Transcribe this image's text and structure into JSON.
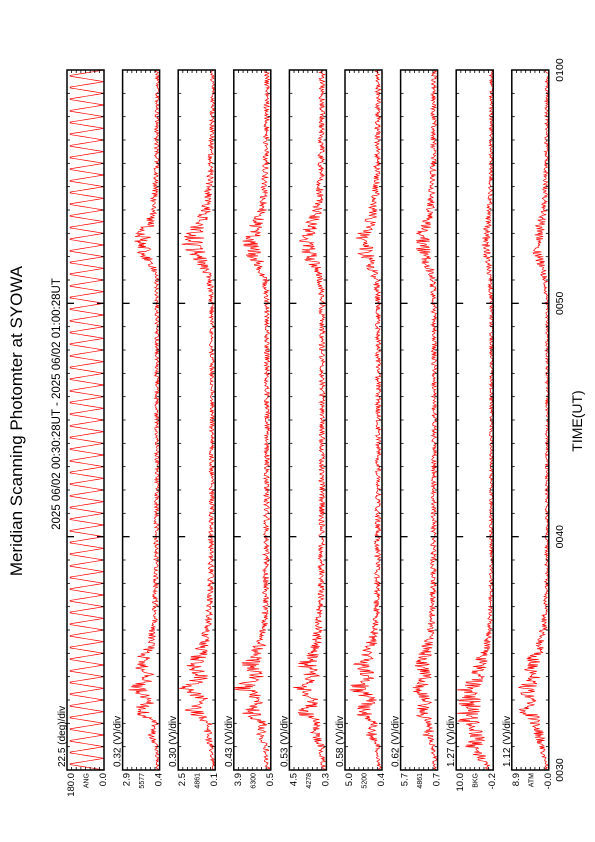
{
  "chart_data": {
    "type": "line",
    "title": "Meridian Scanning Photomter at SYOWA",
    "time_range_label": "2025 06/02 00:30:28UT - 2025 06/02 01:00:28UT",
    "xlabel": "TIME(UT)",
    "x_tick_labels": [
      "0030",
      "0040",
      "0050",
      "0100"
    ],
    "x_range_minutes": [
      30,
      60
    ],
    "series_color": "#ff0000",
    "panels": [
      {
        "name": "ANG",
        "scale_label": "22.5 (deg)/div",
        "y_top_label": "180.0",
        "y_bottom_label": "0.0",
        "y_range": [
          0,
          180
        ],
        "kind": "scan-angle",
        "scan_period_minutes": 0.5
      },
      {
        "name": "5577",
        "scale_label": "0.32 (V)/div",
        "y_top_label": "2.9",
        "y_bottom_label": "0.4",
        "y_range": [
          0.4,
          2.9
        ],
        "kind": "photometer",
        "points": [
          [
            30.0,
            0.52
          ],
          [
            31.0,
            0.6
          ],
          [
            31.5,
            0.95
          ],
          [
            32.0,
            0.7
          ],
          [
            32.5,
            1.8
          ],
          [
            33.0,
            1.0
          ],
          [
            33.5,
            2.0
          ],
          [
            34.0,
            1.1
          ],
          [
            34.5,
            1.7
          ],
          [
            35.0,
            1.3
          ],
          [
            35.5,
            0.95
          ],
          [
            36.0,
            0.85
          ],
          [
            36.5,
            0.75
          ],
          [
            37.0,
            0.7
          ],
          [
            38.0,
            0.66
          ],
          [
            40.0,
            0.62
          ],
          [
            42.0,
            0.6
          ],
          [
            44.0,
            0.58
          ],
          [
            46.0,
            0.6
          ],
          [
            48.0,
            0.58
          ],
          [
            50.0,
            0.57
          ],
          [
            51.0,
            0.6
          ],
          [
            51.5,
            0.8
          ],
          [
            52.0,
            1.3
          ],
          [
            52.5,
            1.6
          ],
          [
            53.0,
            1.5
          ],
          [
            53.5,
            1.1
          ],
          [
            54.0,
            0.85
          ],
          [
            55.0,
            0.7
          ],
          [
            56.0,
            0.63
          ],
          [
            58.0,
            0.58
          ],
          [
            60.0,
            0.55
          ]
        ]
      },
      {
        "name": "4861",
        "scale_label": "0.30 (V)/div",
        "y_top_label": "2.5",
        "y_bottom_label": "0.1",
        "y_range": [
          0.1,
          2.5
        ],
        "kind": "photometer",
        "points": [
          [
            30.0,
            0.2
          ],
          [
            31.0,
            0.35
          ],
          [
            31.5,
            0.6
          ],
          [
            32.0,
            0.5
          ],
          [
            32.5,
            1.6
          ],
          [
            33.0,
            0.8
          ],
          [
            33.5,
            1.9
          ],
          [
            34.0,
            1.0
          ],
          [
            34.5,
            1.5
          ],
          [
            35.0,
            1.1
          ],
          [
            35.5,
            0.8
          ],
          [
            36.0,
            0.6
          ],
          [
            37.0,
            0.45
          ],
          [
            38.0,
            0.4
          ],
          [
            40.0,
            0.36
          ],
          [
            42.0,
            0.34
          ],
          [
            44.0,
            0.32
          ],
          [
            46.0,
            0.3
          ],
          [
            48.0,
            0.32
          ],
          [
            50.0,
            0.33
          ],
          [
            51.0,
            0.45
          ],
          [
            51.5,
            0.8
          ],
          [
            52.0,
            1.2
          ],
          [
            52.5,
            1.6
          ],
          [
            53.0,
            1.4
          ],
          [
            53.5,
            1.0
          ],
          [
            54.0,
            0.7
          ],
          [
            55.0,
            0.5
          ],
          [
            56.0,
            0.38
          ],
          [
            58.0,
            0.3
          ],
          [
            60.0,
            0.26
          ]
        ]
      },
      {
        "name": "6300",
        "scale_label": "0.43 (V)/div",
        "y_top_label": "3.9",
        "y_bottom_label": "0.5",
        "y_range": [
          0.5,
          3.9
        ],
        "kind": "photometer",
        "points": [
          [
            30.0,
            0.8
          ],
          [
            31.0,
            1.0
          ],
          [
            31.5,
            1.4
          ],
          [
            32.0,
            1.2
          ],
          [
            32.5,
            2.6
          ],
          [
            33.0,
            1.6
          ],
          [
            33.5,
            2.9
          ],
          [
            34.0,
            1.8
          ],
          [
            34.5,
            2.4
          ],
          [
            35.0,
            1.9
          ],
          [
            35.5,
            1.4
          ],
          [
            36.0,
            1.2
          ],
          [
            37.0,
            1.0
          ],
          [
            38.0,
            0.95
          ],
          [
            40.0,
            0.9
          ],
          [
            42.0,
            0.88
          ],
          [
            44.0,
            0.85
          ],
          [
            46.0,
            0.86
          ],
          [
            48.0,
            0.84
          ],
          [
            50.0,
            0.85
          ],
          [
            51.0,
            1.0
          ],
          [
            51.5,
            1.4
          ],
          [
            52.0,
            2.0
          ],
          [
            52.5,
            2.3
          ],
          [
            53.0,
            2.2
          ],
          [
            53.5,
            1.7
          ],
          [
            54.0,
            1.3
          ],
          [
            55.0,
            1.05
          ],
          [
            56.0,
            0.95
          ],
          [
            58.0,
            0.88
          ],
          [
            60.0,
            0.85
          ]
        ]
      },
      {
        "name": "4278",
        "scale_label": "0.53 (V)/div",
        "y_top_label": "4.5",
        "y_bottom_label": "0.3",
        "y_range": [
          0.3,
          4.5
        ],
        "kind": "photometer",
        "points": [
          [
            30.0,
            0.6
          ],
          [
            31.0,
            0.9
          ],
          [
            31.5,
            1.5
          ],
          [
            32.0,
            1.2
          ],
          [
            32.5,
            2.8
          ],
          [
            33.0,
            1.6
          ],
          [
            33.5,
            3.1
          ],
          [
            34.0,
            1.9
          ],
          [
            34.5,
            2.6
          ],
          [
            35.0,
            2.0
          ],
          [
            35.5,
            1.5
          ],
          [
            36.0,
            1.2
          ],
          [
            37.0,
            1.0
          ],
          [
            38.0,
            0.9
          ],
          [
            40.0,
            0.85
          ],
          [
            42.0,
            0.82
          ],
          [
            44.0,
            0.8
          ],
          [
            46.0,
            0.78
          ],
          [
            48.0,
            0.8
          ],
          [
            50.0,
            0.8
          ],
          [
            51.0,
            1.0
          ],
          [
            51.5,
            1.5
          ],
          [
            52.0,
            2.1
          ],
          [
            52.5,
            2.4
          ],
          [
            53.0,
            2.3
          ],
          [
            53.5,
            1.8
          ],
          [
            54.0,
            1.3
          ],
          [
            55.0,
            1.0
          ],
          [
            56.0,
            0.9
          ],
          [
            58.0,
            0.82
          ],
          [
            60.0,
            0.78
          ]
        ]
      },
      {
        "name": "5200",
        "scale_label": "0.58 (V)/div",
        "y_top_label": "5.0",
        "y_bottom_label": "0.4",
        "y_range": [
          0.4,
          5.0
        ],
        "kind": "photometer",
        "points": [
          [
            30.0,
            0.7
          ],
          [
            31.0,
            1.0
          ],
          [
            31.5,
            1.7
          ],
          [
            32.0,
            1.3
          ],
          [
            32.5,
            3.0
          ],
          [
            33.0,
            1.8
          ],
          [
            33.5,
            3.4
          ],
          [
            34.0,
            2.1
          ],
          [
            34.5,
            2.8
          ],
          [
            35.0,
            2.2
          ],
          [
            35.5,
            1.7
          ],
          [
            36.0,
            1.3
          ],
          [
            37.0,
            1.1
          ],
          [
            38.0,
            1.0
          ],
          [
            40.0,
            0.95
          ],
          [
            42.0,
            0.9
          ],
          [
            44.0,
            0.88
          ],
          [
            46.0,
            0.86
          ],
          [
            48.0,
            0.88
          ],
          [
            50.0,
            0.9
          ],
          [
            51.0,
            1.1
          ],
          [
            51.5,
            1.6
          ],
          [
            52.0,
            2.3
          ],
          [
            52.5,
            2.7
          ],
          [
            53.0,
            2.6
          ],
          [
            53.5,
            2.0
          ],
          [
            54.0,
            1.5
          ],
          [
            55.0,
            1.15
          ],
          [
            56.0,
            1.0
          ],
          [
            58.0,
            0.92
          ],
          [
            60.0,
            0.88
          ]
        ]
      },
      {
        "name": "4861",
        "scale_label": "0.62 (V)/div",
        "y_top_label": "5.7",
        "y_bottom_label": "0.7",
        "y_range": [
          0.7,
          5.7
        ],
        "kind": "photometer",
        "points": [
          [
            30.0,
            1.0
          ],
          [
            31.0,
            1.3
          ],
          [
            31.5,
            2.0
          ],
          [
            32.0,
            1.6
          ],
          [
            32.5,
            3.1
          ],
          [
            33.0,
            2.1
          ],
          [
            33.5,
            3.4
          ],
          [
            34.0,
            2.3
          ],
          [
            34.5,
            2.9
          ],
          [
            35.0,
            2.4
          ],
          [
            35.5,
            1.9
          ],
          [
            36.0,
            1.6
          ],
          [
            37.0,
            1.4
          ],
          [
            38.0,
            1.3
          ],
          [
            40.0,
            1.25
          ],
          [
            42.0,
            1.2
          ],
          [
            44.0,
            1.18
          ],
          [
            46.0,
            1.16
          ],
          [
            48.0,
            1.18
          ],
          [
            50.0,
            1.2
          ],
          [
            51.0,
            1.4
          ],
          [
            51.5,
            1.8
          ],
          [
            52.0,
            2.5
          ],
          [
            52.5,
            2.8
          ],
          [
            53.0,
            2.7
          ],
          [
            53.5,
            2.1
          ],
          [
            54.0,
            1.7
          ],
          [
            55.0,
            1.45
          ],
          [
            56.0,
            1.3
          ],
          [
            58.0,
            1.22
          ],
          [
            60.0,
            1.18
          ]
        ]
      },
      {
        "name": "BKG",
        "scale_label": "1.27 (V)/div",
        "y_top_label": "10.0",
        "y_bottom_label": "-0.2",
        "y_range": [
          -0.2,
          10.0
        ],
        "kind": "photometer",
        "points": [
          [
            30.0,
            1.0
          ],
          [
            30.5,
            3.0
          ],
          [
            31.0,
            5.0
          ],
          [
            31.5,
            4.0
          ],
          [
            32.0,
            6.5
          ],
          [
            32.5,
            7.0
          ],
          [
            33.0,
            6.0
          ],
          [
            33.5,
            6.8
          ],
          [
            34.0,
            4.0
          ],
          [
            34.5,
            3.5
          ],
          [
            35.0,
            2.5
          ],
          [
            35.5,
            1.5
          ],
          [
            36.0,
            0.8
          ],
          [
            37.0,
            0.5
          ],
          [
            38.0,
            0.4
          ],
          [
            40.0,
            0.35
          ],
          [
            42.0,
            0.33
          ],
          [
            44.0,
            0.32
          ],
          [
            46.0,
            0.3
          ],
          [
            48.0,
            0.32
          ],
          [
            50.0,
            0.33
          ],
          [
            51.0,
            0.6
          ],
          [
            51.5,
            1.0
          ],
          [
            52.0,
            1.6
          ],
          [
            52.5,
            1.9
          ],
          [
            53.0,
            1.7
          ],
          [
            53.5,
            1.2
          ],
          [
            54.0,
            0.8
          ],
          [
            55.0,
            0.5
          ],
          [
            56.0,
            0.4
          ],
          [
            58.0,
            0.35
          ],
          [
            60.0,
            0.33
          ]
        ]
      },
      {
        "name": "ATM",
        "scale_label": "1.12 (V)/div",
        "y_top_label": "8.9",
        "y_bottom_label": "-0.0",
        "y_range": [
          0.0,
          8.9
        ],
        "kind": "photometer",
        "points": [
          [
            30.0,
            0.4
          ],
          [
            31.0,
            1.5
          ],
          [
            31.5,
            2.5
          ],
          [
            32.0,
            3.0
          ],
          [
            32.5,
            5.0
          ],
          [
            33.0,
            4.0
          ],
          [
            33.5,
            5.5
          ],
          [
            34.0,
            3.5
          ],
          [
            34.5,
            4.2
          ],
          [
            35.0,
            3.0
          ],
          [
            35.5,
            2.0
          ],
          [
            36.0,
            1.3
          ],
          [
            37.0,
            0.8
          ],
          [
            38.0,
            0.6
          ],
          [
            40.0,
            0.5
          ],
          [
            42.0,
            0.45
          ],
          [
            44.0,
            0.42
          ],
          [
            46.0,
            0.4
          ],
          [
            48.0,
            0.42
          ],
          [
            50.0,
            0.45
          ],
          [
            51.0,
            0.9
          ],
          [
            51.5,
            1.5
          ],
          [
            52.0,
            2.4
          ],
          [
            52.5,
            2.8
          ],
          [
            53.0,
            2.5
          ],
          [
            53.5,
            1.8
          ],
          [
            54.0,
            1.2
          ],
          [
            55.0,
            0.8
          ],
          [
            56.0,
            0.6
          ],
          [
            58.0,
            0.5
          ],
          [
            60.0,
            0.45
          ]
        ]
      }
    ]
  }
}
